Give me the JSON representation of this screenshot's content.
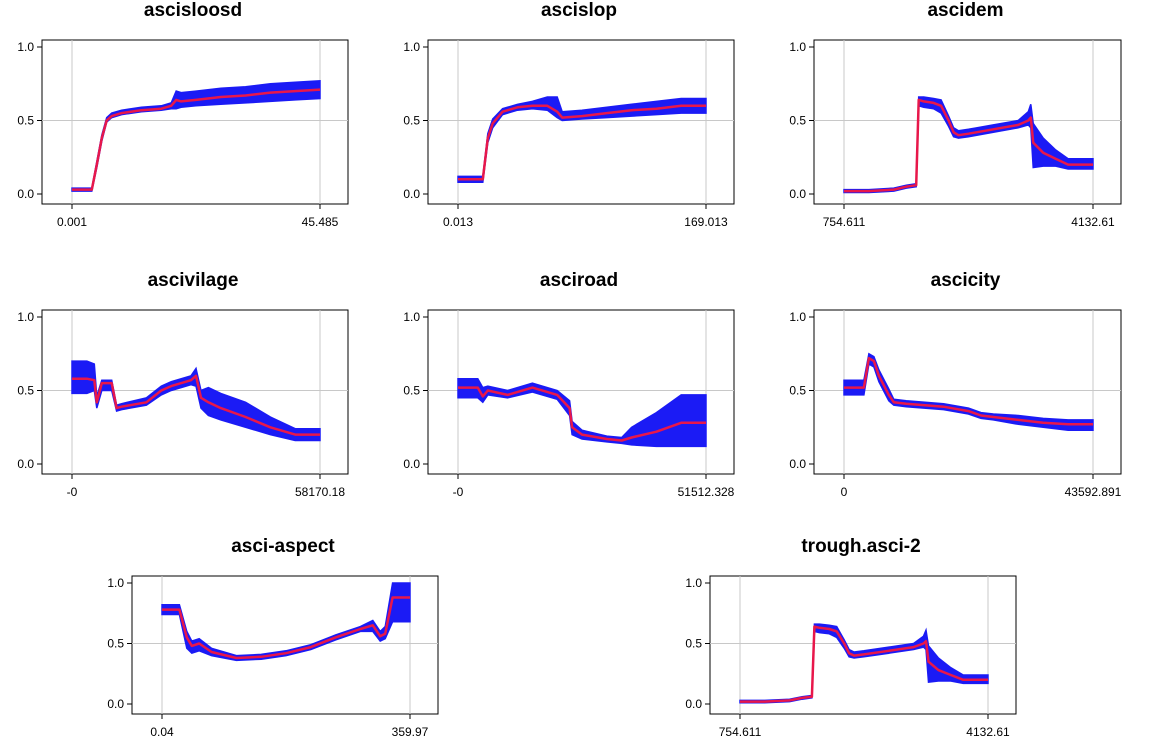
{
  "colors": {
    "band": "#1b1bf5",
    "line": "#e8174a",
    "frame": "#000000",
    "grid": "#c8c8c8"
  },
  "chart_data": [
    {
      "type": "area",
      "title": "ascisloosd",
      "y_ticks": [
        "0.0",
        "0.5",
        "1.0"
      ],
      "x_ticks": [
        "0.001",
        "45.485"
      ],
      "ylim": [
        0,
        1
      ],
      "grid": true,
      "x": [
        0,
        0.02,
        0.06,
        0.08,
        0.1,
        0.12,
        0.14,
        0.16,
        0.2,
        0.28,
        0.36,
        0.4,
        0.42,
        0.44,
        0.5,
        0.6,
        0.7,
        0.8,
        0.9,
        1.0
      ],
      "y": [
        0.03,
        0.03,
        0.03,
        0.03,
        0.2,
        0.38,
        0.5,
        0.53,
        0.55,
        0.57,
        0.58,
        0.6,
        0.64,
        0.63,
        0.64,
        0.66,
        0.67,
        0.69,
        0.7,
        0.71
      ],
      "lower": [
        0.02,
        0.02,
        0.02,
        0.02,
        0.18,
        0.36,
        0.49,
        0.52,
        0.54,
        0.56,
        0.57,
        0.58,
        0.58,
        0.59,
        0.6,
        0.61,
        0.62,
        0.63,
        0.64,
        0.65
      ],
      "upper": [
        0.04,
        0.04,
        0.04,
        0.04,
        0.22,
        0.4,
        0.52,
        0.55,
        0.57,
        0.59,
        0.6,
        0.62,
        0.7,
        0.69,
        0.7,
        0.72,
        0.73,
        0.75,
        0.76,
        0.77
      ]
    },
    {
      "type": "area",
      "title": "ascislop",
      "y_ticks": [
        "0.0",
        "0.5",
        "1.0"
      ],
      "x_ticks": [
        "0.013",
        "169.013"
      ],
      "ylim": [
        0,
        1
      ],
      "grid": true,
      "x": [
        0,
        0.03,
        0.07,
        0.1,
        0.12,
        0.14,
        0.18,
        0.24,
        0.3,
        0.36,
        0.4,
        0.42,
        0.5,
        0.6,
        0.7,
        0.8,
        0.9,
        1.0
      ],
      "y": [
        0.1,
        0.1,
        0.1,
        0.1,
        0.38,
        0.48,
        0.56,
        0.59,
        0.6,
        0.6,
        0.56,
        0.52,
        0.53,
        0.55,
        0.57,
        0.58,
        0.6,
        0.6
      ],
      "lower": [
        0.08,
        0.08,
        0.08,
        0.08,
        0.35,
        0.45,
        0.54,
        0.57,
        0.58,
        0.57,
        0.52,
        0.5,
        0.51,
        0.52,
        0.53,
        0.54,
        0.55,
        0.55
      ],
      "upper": [
        0.12,
        0.12,
        0.12,
        0.12,
        0.41,
        0.51,
        0.58,
        0.61,
        0.63,
        0.66,
        0.66,
        0.56,
        0.57,
        0.59,
        0.61,
        0.63,
        0.65,
        0.65
      ]
    },
    {
      "type": "area",
      "title": "ascidem",
      "y_ticks": [
        "0.0",
        "0.5",
        "1.0"
      ],
      "x_ticks": [
        "754.611",
        "4132.61"
      ],
      "ylim": [
        0,
        1
      ],
      "grid": true,
      "x": [
        0,
        0.1,
        0.2,
        0.25,
        0.29,
        0.3,
        0.32,
        0.36,
        0.39,
        0.42,
        0.44,
        0.46,
        0.5,
        0.6,
        0.7,
        0.74,
        0.75,
        0.76,
        0.8,
        0.85,
        0.9,
        1.0
      ],
      "y": [
        0.02,
        0.02,
        0.03,
        0.05,
        0.06,
        0.64,
        0.63,
        0.62,
        0.6,
        0.5,
        0.42,
        0.4,
        0.41,
        0.44,
        0.47,
        0.5,
        0.52,
        0.35,
        0.28,
        0.24,
        0.2,
        0.2
      ],
      "lower": [
        0.01,
        0.01,
        0.02,
        0.04,
        0.05,
        0.6,
        0.59,
        0.58,
        0.55,
        0.46,
        0.39,
        0.38,
        0.39,
        0.42,
        0.45,
        0.47,
        0.45,
        0.18,
        0.19,
        0.19,
        0.17,
        0.17
      ],
      "upper": [
        0.03,
        0.03,
        0.04,
        0.06,
        0.07,
        0.66,
        0.66,
        0.65,
        0.64,
        0.53,
        0.45,
        0.43,
        0.44,
        0.47,
        0.5,
        0.56,
        0.61,
        0.48,
        0.38,
        0.3,
        0.24,
        0.24
      ]
    },
    {
      "type": "area",
      "title": "ascivilage",
      "y_ticks": [
        "0.0",
        "0.5",
        "1.0"
      ],
      "x_ticks": [
        "-0",
        "58170.18"
      ],
      "ylim": [
        0,
        1
      ],
      "grid": true,
      "x": [
        0,
        0.06,
        0.09,
        0.1,
        0.12,
        0.16,
        0.18,
        0.2,
        0.3,
        0.36,
        0.4,
        0.48,
        0.5,
        0.52,
        0.55,
        0.6,
        0.7,
        0.8,
        0.9,
        1.0
      ],
      "y": [
        0.58,
        0.58,
        0.57,
        0.42,
        0.55,
        0.55,
        0.38,
        0.39,
        0.42,
        0.5,
        0.53,
        0.57,
        0.6,
        0.45,
        0.42,
        0.38,
        0.32,
        0.25,
        0.2,
        0.2
      ],
      "lower": [
        0.48,
        0.48,
        0.5,
        0.38,
        0.5,
        0.5,
        0.36,
        0.37,
        0.4,
        0.47,
        0.5,
        0.54,
        0.53,
        0.38,
        0.33,
        0.3,
        0.25,
        0.2,
        0.16,
        0.16
      ],
      "upper": [
        0.7,
        0.7,
        0.68,
        0.46,
        0.57,
        0.57,
        0.4,
        0.41,
        0.45,
        0.53,
        0.56,
        0.6,
        0.65,
        0.5,
        0.52,
        0.48,
        0.42,
        0.32,
        0.24,
        0.24
      ]
    },
    {
      "type": "area",
      "title": "asciroad",
      "y_ticks": [
        "0.0",
        "0.5",
        "1.0"
      ],
      "x_ticks": [
        "-0",
        "51512.328"
      ],
      "ylim": [
        0,
        1
      ],
      "grid": true,
      "x": [
        0,
        0.08,
        0.1,
        0.12,
        0.2,
        0.3,
        0.4,
        0.45,
        0.46,
        0.5,
        0.6,
        0.66,
        0.7,
        0.8,
        0.9,
        1.0
      ],
      "y": [
        0.52,
        0.52,
        0.46,
        0.5,
        0.47,
        0.52,
        0.47,
        0.38,
        0.25,
        0.2,
        0.17,
        0.16,
        0.18,
        0.22,
        0.28,
        0.28
      ],
      "lower": [
        0.45,
        0.45,
        0.42,
        0.47,
        0.45,
        0.49,
        0.44,
        0.33,
        0.2,
        0.17,
        0.15,
        0.14,
        0.13,
        0.12,
        0.12,
        0.12
      ],
      "upper": [
        0.58,
        0.58,
        0.52,
        0.53,
        0.5,
        0.55,
        0.5,
        0.43,
        0.29,
        0.23,
        0.19,
        0.18,
        0.25,
        0.35,
        0.47,
        0.47
      ]
    },
    {
      "type": "area",
      "title": "ascicity",
      "y_ticks": [
        "0.0",
        "0.5",
        "1.0"
      ],
      "x_ticks": [
        "0",
        "43592.891"
      ],
      "ylim": [
        0,
        1
      ],
      "grid": true,
      "x": [
        0,
        0.08,
        0.1,
        0.12,
        0.14,
        0.18,
        0.2,
        0.25,
        0.4,
        0.5,
        0.55,
        0.6,
        0.7,
        0.8,
        0.9,
        1.0
      ],
      "y": [
        0.52,
        0.52,
        0.72,
        0.7,
        0.6,
        0.47,
        0.42,
        0.41,
        0.39,
        0.36,
        0.33,
        0.32,
        0.3,
        0.28,
        0.27,
        0.27
      ],
      "lower": [
        0.47,
        0.47,
        0.68,
        0.66,
        0.56,
        0.43,
        0.4,
        0.39,
        0.37,
        0.34,
        0.31,
        0.3,
        0.27,
        0.25,
        0.23,
        0.23
      ],
      "upper": [
        0.57,
        0.57,
        0.75,
        0.73,
        0.64,
        0.51,
        0.44,
        0.43,
        0.41,
        0.38,
        0.35,
        0.34,
        0.33,
        0.31,
        0.3,
        0.3
      ]
    },
    {
      "type": "area",
      "title": "asci-aspect",
      "y_ticks": [
        "0.0",
        "0.5",
        "1.0"
      ],
      "x_ticks": [
        "0.04",
        "359.97"
      ],
      "ylim": [
        0,
        1
      ],
      "grid": true,
      "x": [
        0,
        0.07,
        0.1,
        0.12,
        0.15,
        0.2,
        0.3,
        0.4,
        0.5,
        0.6,
        0.7,
        0.8,
        0.85,
        0.88,
        0.9,
        0.93,
        0.95,
        1.0
      ],
      "y": [
        0.78,
        0.78,
        0.55,
        0.48,
        0.5,
        0.43,
        0.38,
        0.39,
        0.42,
        0.47,
        0.55,
        0.62,
        0.65,
        0.56,
        0.58,
        0.88,
        0.88,
        0.88
      ],
      "lower": [
        0.74,
        0.74,
        0.46,
        0.42,
        0.44,
        0.4,
        0.36,
        0.37,
        0.4,
        0.45,
        0.53,
        0.6,
        0.6,
        0.52,
        0.54,
        0.68,
        0.68,
        0.68
      ],
      "upper": [
        0.82,
        0.82,
        0.6,
        0.52,
        0.54,
        0.46,
        0.4,
        0.41,
        0.44,
        0.49,
        0.57,
        0.64,
        0.69,
        0.6,
        0.64,
        1.0,
        1.0,
        1.0
      ]
    },
    {
      "type": "area",
      "title": "trough.asci-2",
      "y_ticks": [
        "0.0",
        "0.5",
        "1.0"
      ],
      "x_ticks": [
        "754.611",
        "4132.61"
      ],
      "ylim": [
        0,
        1
      ],
      "grid": true,
      "x": [
        0,
        0.1,
        0.2,
        0.25,
        0.29,
        0.3,
        0.32,
        0.36,
        0.39,
        0.42,
        0.44,
        0.46,
        0.5,
        0.6,
        0.7,
        0.74,
        0.75,
        0.76,
        0.8,
        0.85,
        0.9,
        1.0
      ],
      "y": [
        0.02,
        0.02,
        0.03,
        0.05,
        0.06,
        0.64,
        0.63,
        0.62,
        0.6,
        0.5,
        0.42,
        0.4,
        0.41,
        0.44,
        0.47,
        0.5,
        0.52,
        0.35,
        0.28,
        0.24,
        0.2,
        0.2
      ],
      "lower": [
        0.01,
        0.01,
        0.02,
        0.04,
        0.05,
        0.6,
        0.59,
        0.58,
        0.55,
        0.46,
        0.39,
        0.38,
        0.39,
        0.42,
        0.45,
        0.47,
        0.45,
        0.18,
        0.19,
        0.19,
        0.17,
        0.17
      ],
      "upper": [
        0.03,
        0.03,
        0.04,
        0.06,
        0.07,
        0.66,
        0.66,
        0.65,
        0.64,
        0.53,
        0.45,
        0.43,
        0.44,
        0.47,
        0.5,
        0.56,
        0.61,
        0.48,
        0.38,
        0.3,
        0.24,
        0.24
      ]
    }
  ]
}
